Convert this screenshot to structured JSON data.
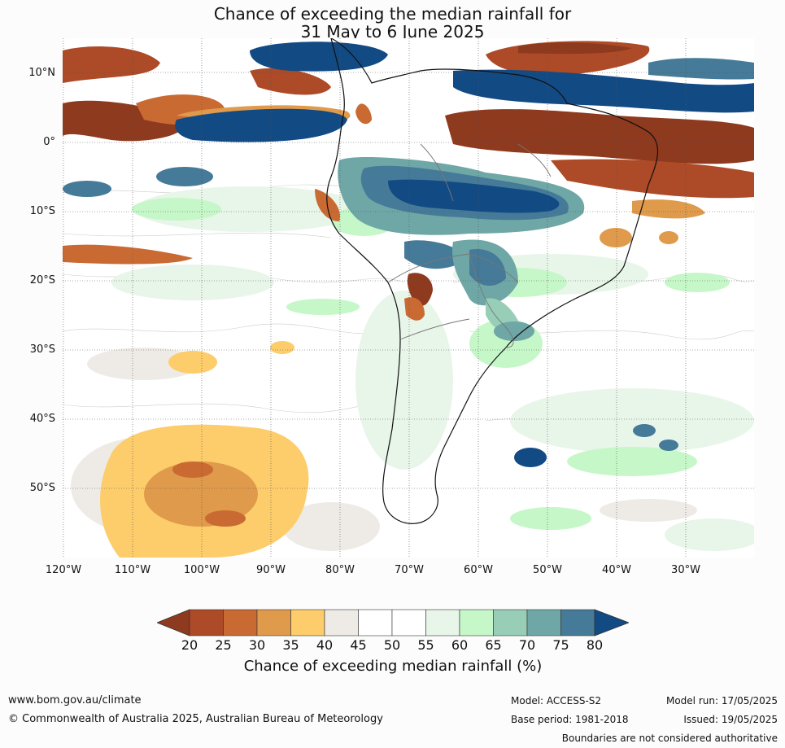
{
  "title": {
    "line1": "Chance of exceeding the median rainfall for",
    "line2": "31 May to 6 June 2025"
  },
  "map": {
    "lat_labels": [
      "10°N",
      "0°",
      "10°S",
      "20°S",
      "30°S",
      "40°S",
      "50°S"
    ],
    "lon_labels": [
      "120°W",
      "110°W",
      "100°W",
      "90°W",
      "80°W",
      "70°W",
      "60°W",
      "50°W",
      "40°W",
      "30°W"
    ],
    "colors": {
      "c20": "#8e3a1e",
      "c25": "#ad4a27",
      "c30": "#c96a33",
      "c35": "#e09a4b",
      "c40": "#fdcc6b",
      "c45": "#eeebe7",
      "c50": "#ffffff",
      "c55": "#ffffff",
      "c60": "#e8f5e9",
      "c65": "#c6f7c8",
      "c70": "#98cdb7",
      "c75": "#6ea7a6",
      "c80": "#457a98",
      "c85": "#124a84"
    }
  },
  "colorbar": {
    "ticks": [
      "20",
      "25",
      "30",
      "35",
      "40",
      "45",
      "50",
      "55",
      "60",
      "65",
      "70",
      "75",
      "80"
    ],
    "colors": [
      "#8e3a1e",
      "#ad4a27",
      "#c96a33",
      "#e09a4b",
      "#fdcc6b",
      "#eeebe7",
      "#ffffff",
      "#ffffff",
      "#e8f5e9",
      "#c6f7c8",
      "#98cdb7",
      "#6ea7a6",
      "#457a98",
      "#124a84"
    ],
    "label": "Chance of exceeding median rainfall (%)"
  },
  "footer": {
    "website": "www.bom.gov.au/climate",
    "copyright": "© Commonwealth of Australia 2025, Australian Bureau of Meteorology",
    "model": "Model: ACCESS-S2",
    "model_run": "Model run: 17/05/2025",
    "base_period": "Base period: 1981-2018",
    "issued": "Issued: 19/05/2025",
    "disclaimer": "Boundaries are not considered authoritative"
  }
}
